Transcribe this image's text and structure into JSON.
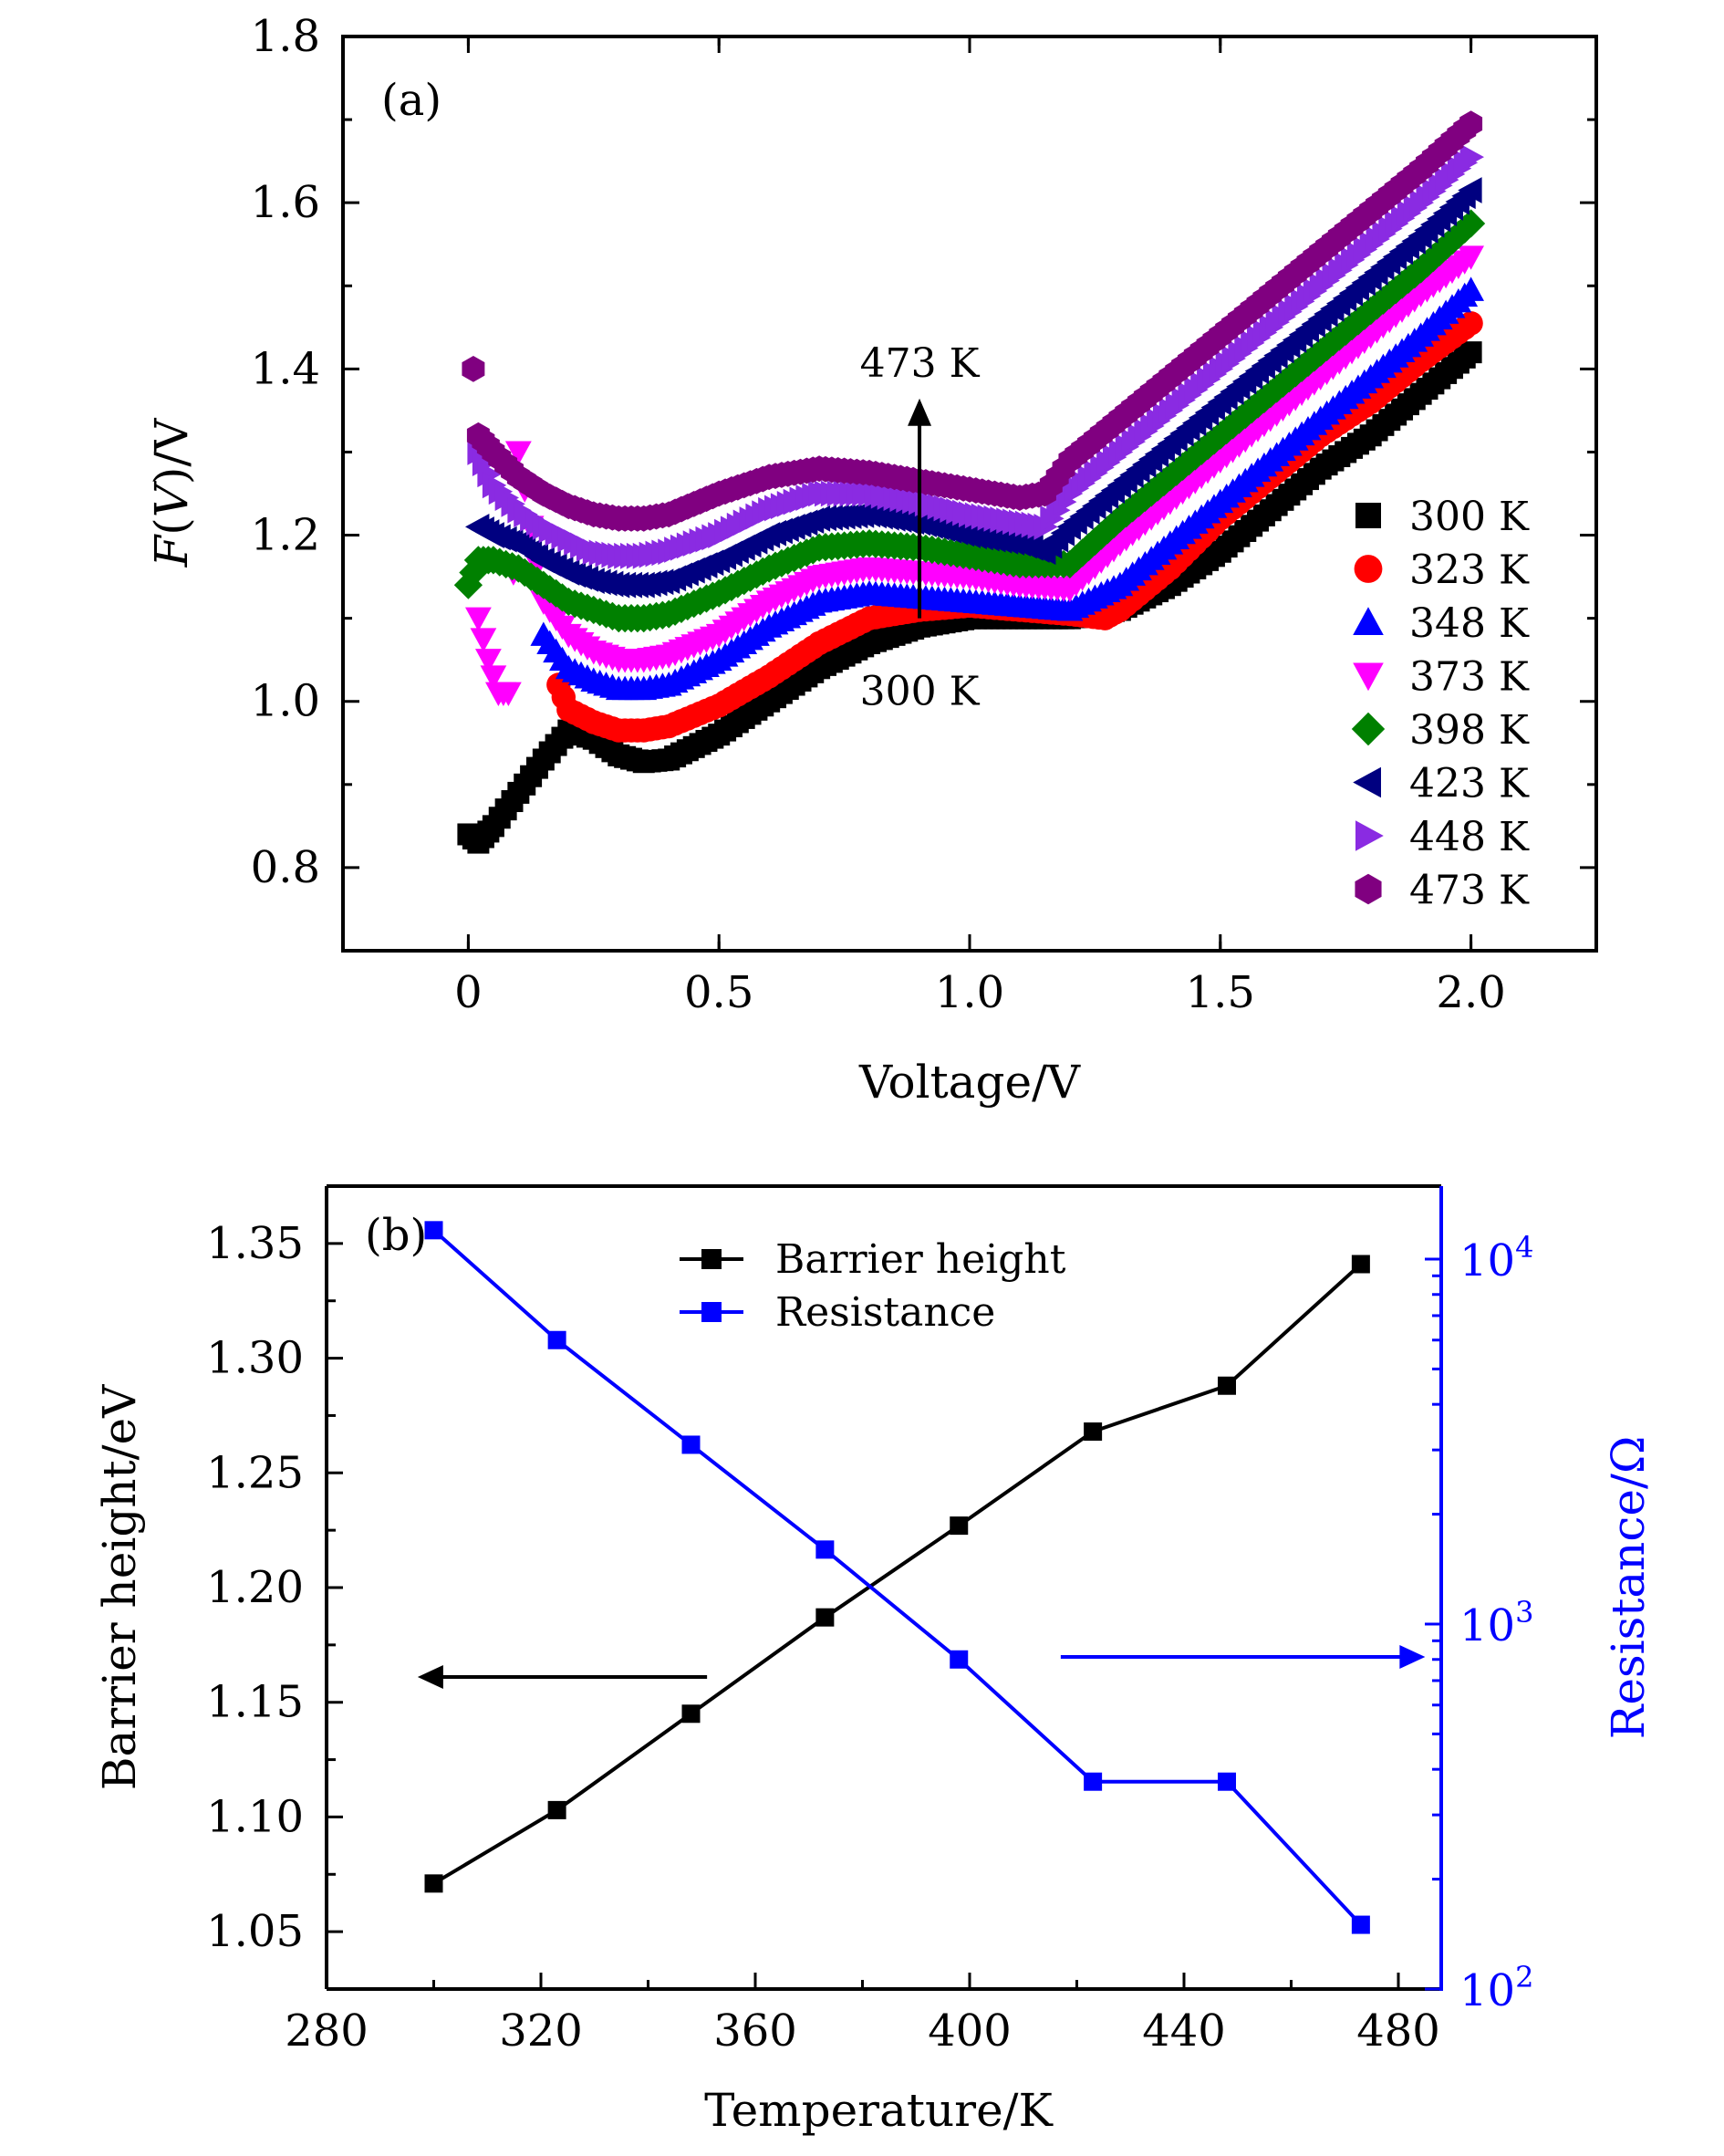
{
  "colors": {
    "black": "#000000",
    "blue": "#0000ff",
    "s300": "#000000",
    "s323": "#ff0000",
    "s348": "#0000ff",
    "s373": "#ff00ff",
    "s398": "#008000",
    "s423": "#000080",
    "s448": "#8a2be2",
    "s473": "#800080"
  },
  "chart_data": [
    {
      "type": "scatter",
      "panel_label": "(a)",
      "xlabel": "Voltage/V",
      "ylabel_italic": "F",
      "ylabel_mid": "(",
      "ylabel_italic2": "V",
      "ylabel_end": ")/V",
      "xlim": [
        -0.25,
        2.25
      ],
      "ylim": [
        0.7,
        1.8
      ],
      "xticks": [
        0,
        0.5,
        1.0,
        1.5,
        2.0
      ],
      "xtick_labels": [
        "0",
        "0.5",
        "1.0",
        "1.5",
        "2.0"
      ],
      "yticks": [
        0.8,
        1.0,
        1.2,
        1.4,
        1.6,
        1.8
      ],
      "ytick_labels": [
        "0.8",
        "1.0",
        "1.2",
        "1.4",
        "1.6",
        "1.8"
      ],
      "annotations": {
        "top": "473 K",
        "bottom": "300 K",
        "arrow_x": 0.9,
        "arrow_from": 1.1,
        "arrow_to": 1.36
      },
      "legend_position": "right",
      "series": [
        {
          "name": "300 K",
          "marker": "square",
          "color": "s300",
          "x": [
            0.0,
            0.02,
            0.05,
            0.1,
            0.15,
            0.2,
            0.25,
            0.3,
            0.35,
            0.4,
            0.5,
            0.6,
            0.7,
            0.8,
            0.9,
            1.0,
            1.1,
            1.2,
            1.3,
            1.4,
            1.5,
            1.6,
            1.7,
            1.8,
            1.9,
            2.0
          ],
          "y": [
            0.84,
            0.83,
            0.85,
            0.89,
            0.93,
            0.965,
            0.955,
            0.935,
            0.927,
            0.93,
            0.96,
            1.0,
            1.04,
            1.07,
            1.09,
            1.1,
            1.1,
            1.1,
            1.11,
            1.14,
            1.18,
            1.23,
            1.28,
            1.32,
            1.37,
            1.42
          ]
        },
        {
          "name": "323 K",
          "marker": "circle",
          "color": "s323",
          "x": [
            0.18,
            0.2,
            0.25,
            0.3,
            0.35,
            0.4,
            0.5,
            0.6,
            0.7,
            0.8,
            0.9,
            1.0,
            1.1,
            1.2,
            1.27,
            1.3,
            1.4,
            1.5,
            1.6,
            1.7,
            1.8,
            1.9,
            2.0
          ],
          "y": [
            1.02,
            0.99,
            0.975,
            0.965,
            0.965,
            0.97,
            0.995,
            1.03,
            1.07,
            1.1,
            1.11,
            1.115,
            1.11,
            1.105,
            1.1,
            1.11,
            1.16,
            1.22,
            1.27,
            1.32,
            1.36,
            1.41,
            1.455
          ]
        },
        {
          "name": "348 K",
          "marker": "triangle-up",
          "color": "s348",
          "x": [
            0.15,
            0.2,
            0.25,
            0.3,
            0.35,
            0.4,
            0.5,
            0.6,
            0.7,
            0.8,
            0.9,
            1.0,
            1.1,
            1.2,
            1.3,
            1.4,
            1.5,
            1.6,
            1.7,
            1.8,
            1.9,
            2.0
          ],
          "y": [
            1.08,
            1.04,
            1.025,
            1.015,
            1.015,
            1.02,
            1.05,
            1.09,
            1.12,
            1.13,
            1.125,
            1.12,
            1.115,
            1.11,
            1.14,
            1.19,
            1.24,
            1.29,
            1.34,
            1.39,
            1.44,
            1.495
          ]
        },
        {
          "name": "373 K",
          "marker": "triangle-down",
          "color": "s373",
          "x": [
            0.02,
            0.04,
            0.06,
            0.08,
            0.1,
            0.15,
            0.2,
            0.25,
            0.3,
            0.35,
            0.4,
            0.5,
            0.6,
            0.7,
            0.8,
            0.9,
            1.0,
            1.1,
            1.2,
            1.3,
            1.4,
            1.5,
            1.6,
            1.7,
            1.8,
            1.9,
            2.0
          ],
          "y": [
            1.1,
            1.05,
            1.01,
            1.01,
            1.3,
            1.12,
            1.08,
            1.06,
            1.05,
            1.05,
            1.055,
            1.08,
            1.12,
            1.15,
            1.16,
            1.155,
            1.15,
            1.14,
            1.135,
            1.19,
            1.24,
            1.29,
            1.34,
            1.39,
            1.44,
            1.49,
            1.535
          ]
        },
        {
          "name": "398 K",
          "marker": "diamond",
          "color": "s398",
          "x": [
            0.0,
            0.02,
            0.05,
            0.1,
            0.15,
            0.2,
            0.25,
            0.3,
            0.35,
            0.4,
            0.5,
            0.6,
            0.7,
            0.8,
            0.9,
            1.0,
            1.1,
            1.2,
            1.3,
            1.4,
            1.5,
            1.6,
            1.7,
            1.8,
            1.9,
            2.0
          ],
          "y": [
            1.14,
            1.17,
            1.17,
            1.16,
            1.14,
            1.12,
            1.11,
            1.1,
            1.1,
            1.105,
            1.13,
            1.16,
            1.185,
            1.19,
            1.185,
            1.175,
            1.165,
            1.165,
            1.22,
            1.27,
            1.32,
            1.37,
            1.42,
            1.47,
            1.52,
            1.575
          ]
        },
        {
          "name": "423 K",
          "marker": "triangle-left",
          "color": "s423",
          "x": [
            0.02,
            0.05,
            0.1,
            0.15,
            0.2,
            0.25,
            0.3,
            0.35,
            0.4,
            0.5,
            0.6,
            0.7,
            0.8,
            0.9,
            1.0,
            1.1,
            1.15,
            1.2,
            1.3,
            1.4,
            1.5,
            1.6,
            1.7,
            1.8,
            1.9,
            2.0
          ],
          "y": [
            1.21,
            1.2,
            1.19,
            1.17,
            1.155,
            1.145,
            1.14,
            1.14,
            1.145,
            1.17,
            1.2,
            1.22,
            1.225,
            1.215,
            1.2,
            1.19,
            1.18,
            1.21,
            1.26,
            1.31,
            1.36,
            1.41,
            1.46,
            1.51,
            1.56,
            1.615
          ]
        },
        {
          "name": "448 K",
          "marker": "triangle-right",
          "color": "s448",
          "x": [
            0.02,
            0.05,
            0.1,
            0.15,
            0.2,
            0.25,
            0.3,
            0.35,
            0.4,
            0.5,
            0.6,
            0.7,
            0.8,
            0.9,
            1.0,
            1.1,
            1.15,
            1.2,
            1.3,
            1.4,
            1.5,
            1.6,
            1.7,
            1.8,
            1.9,
            2.0
          ],
          "y": [
            1.3,
            1.26,
            1.23,
            1.21,
            1.195,
            1.18,
            1.175,
            1.175,
            1.18,
            1.2,
            1.23,
            1.25,
            1.25,
            1.24,
            1.225,
            1.215,
            1.21,
            1.25,
            1.3,
            1.35,
            1.4,
            1.45,
            1.5,
            1.55,
            1.6,
            1.655
          ]
        },
        {
          "name": "473 K",
          "marker": "hexagon",
          "color": "s473",
          "x": [
            0.01,
            0.02,
            0.05,
            0.1,
            0.15,
            0.2,
            0.25,
            0.3,
            0.35,
            0.4,
            0.5,
            0.6,
            0.7,
            0.8,
            0.9,
            1.0,
            1.1,
            1.15,
            1.2,
            1.3,
            1.4,
            1.5,
            1.6,
            1.7,
            1.8,
            1.9,
            2.0
          ],
          "y": [
            1.4,
            1.32,
            1.3,
            1.27,
            1.25,
            1.235,
            1.225,
            1.22,
            1.22,
            1.225,
            1.25,
            1.27,
            1.28,
            1.275,
            1.265,
            1.255,
            1.245,
            1.25,
            1.29,
            1.34,
            1.39,
            1.44,
            1.49,
            1.54,
            1.59,
            1.64,
            1.695
          ]
        }
      ]
    },
    {
      "type": "line",
      "panel_label": "(b)",
      "xlabel": "Temperature/K",
      "ylabel_left": "Barrier height/eV",
      "ylabel_right": "Resistance/Ω",
      "xlim": [
        280,
        488
      ],
      "xticks": [
        280,
        320,
        360,
        400,
        440,
        480
      ],
      "xtick_labels": [
        "280",
        "320",
        "360",
        "400",
        "440",
        "480"
      ],
      "ylim_left": [
        1.025,
        1.375
      ],
      "yticks_left": [
        1.05,
        1.1,
        1.15,
        1.2,
        1.25,
        1.3,
        1.35
      ],
      "ytick_labels_left": [
        "1.05",
        "1.10",
        "1.15",
        "1.20",
        "1.25",
        "1.30",
        "1.35"
      ],
      "ylim_right_log10": [
        2,
        4.2
      ],
      "yticks_right": [
        {
          "base": "10",
          "exp": "2",
          "log": 2
        },
        {
          "base": "10",
          "exp": "3",
          "log": 3
        },
        {
          "base": "10",
          "exp": "4",
          "log": 4
        }
      ],
      "legend_position": "top-center",
      "series": [
        {
          "name": "Barrier height",
          "axis": "left",
          "color": "black",
          "marker": "square",
          "x": [
            300,
            323,
            348,
            373,
            398,
            423,
            448,
            473
          ],
          "y": [
            1.071,
            1.103,
            1.145,
            1.187,
            1.227,
            1.268,
            1.288,
            1.341
          ]
        },
        {
          "name": "Resistance",
          "axis": "right",
          "color": "blue",
          "marker": "square",
          "x": [
            300,
            323,
            348,
            373,
            398,
            423,
            448,
            473
          ],
          "y": [
            12000,
            6000,
            3100,
            1600,
            800,
            370,
            370,
            150
          ]
        }
      ],
      "arrows": [
        {
          "direction": "left",
          "axis": "left",
          "from_x": 351,
          "to_x": 297,
          "y": 1.161
        },
        {
          "direction": "right",
          "axis": "right",
          "from_x": 417,
          "to_x": 485,
          "log_y": 2.91
        }
      ]
    }
  ]
}
